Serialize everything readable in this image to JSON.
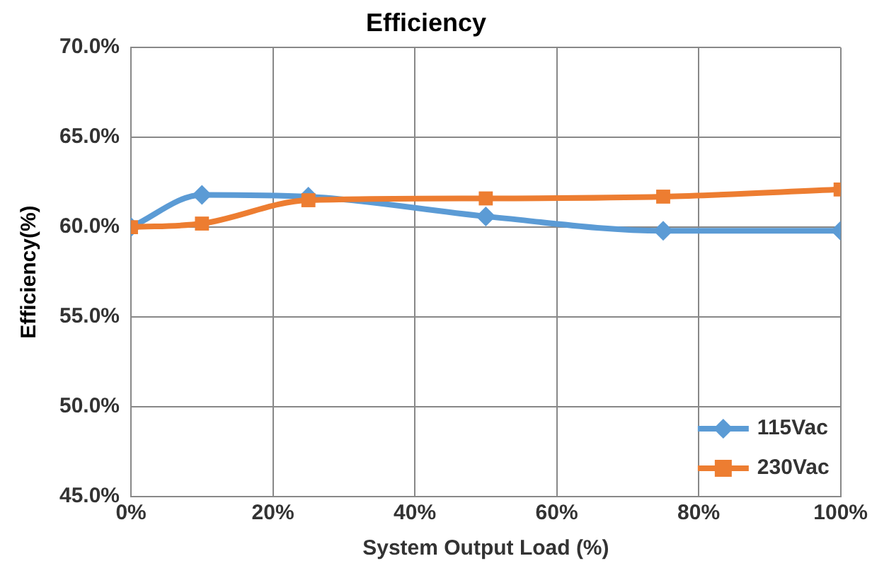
{
  "chart_data": {
    "type": "line",
    "title": "Efficiency",
    "xlabel": "System Output Load (%)",
    "ylabel": "Efficiency(%)",
    "x": [
      0,
      10,
      25,
      50,
      75,
      100
    ],
    "series": [
      {
        "name": "115Vac",
        "color": "#5b9bd5",
        "marker": "diamond",
        "values": [
          60.0,
          61.8,
          61.7,
          60.6,
          59.8,
          59.8
        ]
      },
      {
        "name": "230Vac",
        "color": "#ed7d31",
        "marker": "square",
        "values": [
          60.0,
          60.2,
          61.5,
          61.6,
          61.7,
          62.1
        ]
      }
    ],
    "xlim": [
      0,
      100
    ],
    "xticks": [
      {
        "value": 0,
        "label": "0%"
      },
      {
        "value": 20,
        "label": "20%"
      },
      {
        "value": 40,
        "label": "40%"
      },
      {
        "value": 60,
        "label": "60%"
      },
      {
        "value": 80,
        "label": "80%"
      },
      {
        "value": 100,
        "label": "100%"
      }
    ],
    "ylim": [
      45,
      70
    ],
    "yticks": [
      {
        "value": 45,
        "label": "45.0%"
      },
      {
        "value": 50,
        "label": "50.0%"
      },
      {
        "value": 55,
        "label": "55.0%"
      },
      {
        "value": 60,
        "label": "60.0%"
      },
      {
        "value": 65,
        "label": "65.0%"
      },
      {
        "value": 70,
        "label": "70.0%"
      }
    ],
    "grid": true,
    "legend": "bottom right",
    "line_style": "solid"
  }
}
